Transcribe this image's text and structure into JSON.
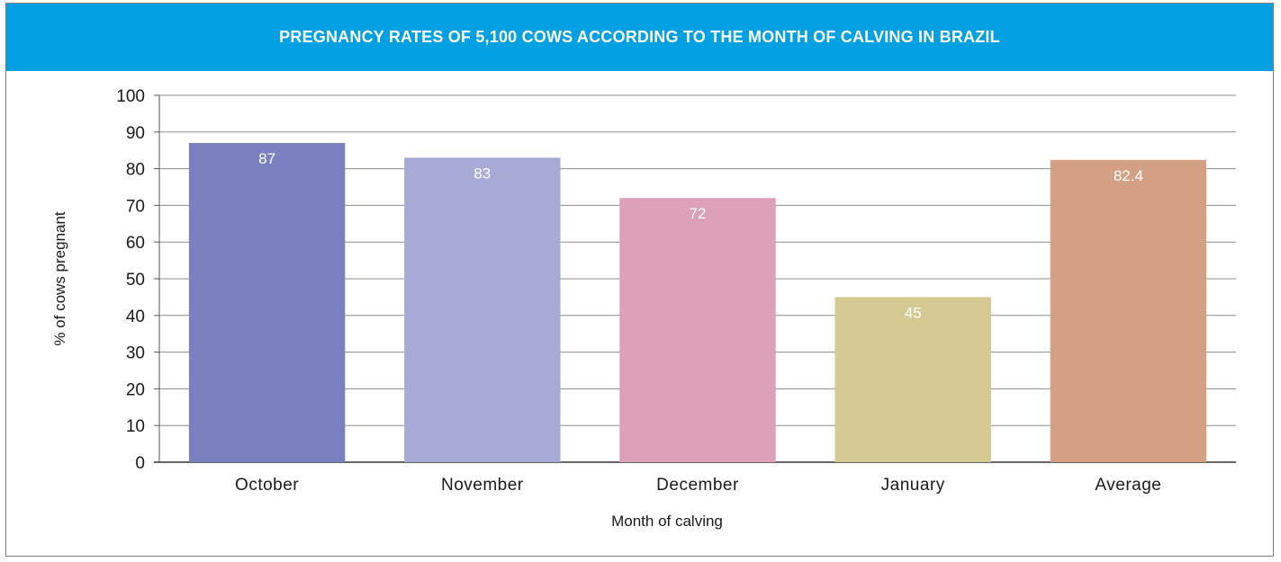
{
  "chart_data": {
    "type": "bar",
    "title": "PREGNANCY RATES OF 5,100 COWS ACCORDING TO THE MONTH OF CALVING IN BRAZIL",
    "xlabel": "Month of calving",
    "ylabel": "% of cows pregnant",
    "categories": [
      "October",
      "November",
      "December",
      "January",
      "Average"
    ],
    "values": [
      87,
      83,
      72,
      45,
      82.4
    ],
    "value_labels": [
      "87",
      "83",
      "72",
      "45",
      "82.4"
    ],
    "colors": [
      "#7b80c0",
      "#a8aad6",
      "#dca0b8",
      "#d4c990",
      "#d4a084"
    ],
    "ylim": [
      0,
      100
    ],
    "yticks": [
      0,
      10,
      20,
      30,
      40,
      50,
      60,
      70,
      80,
      90,
      100
    ],
    "grid": true,
    "legend": "none",
    "title_bar_color": "#00a0e3"
  }
}
